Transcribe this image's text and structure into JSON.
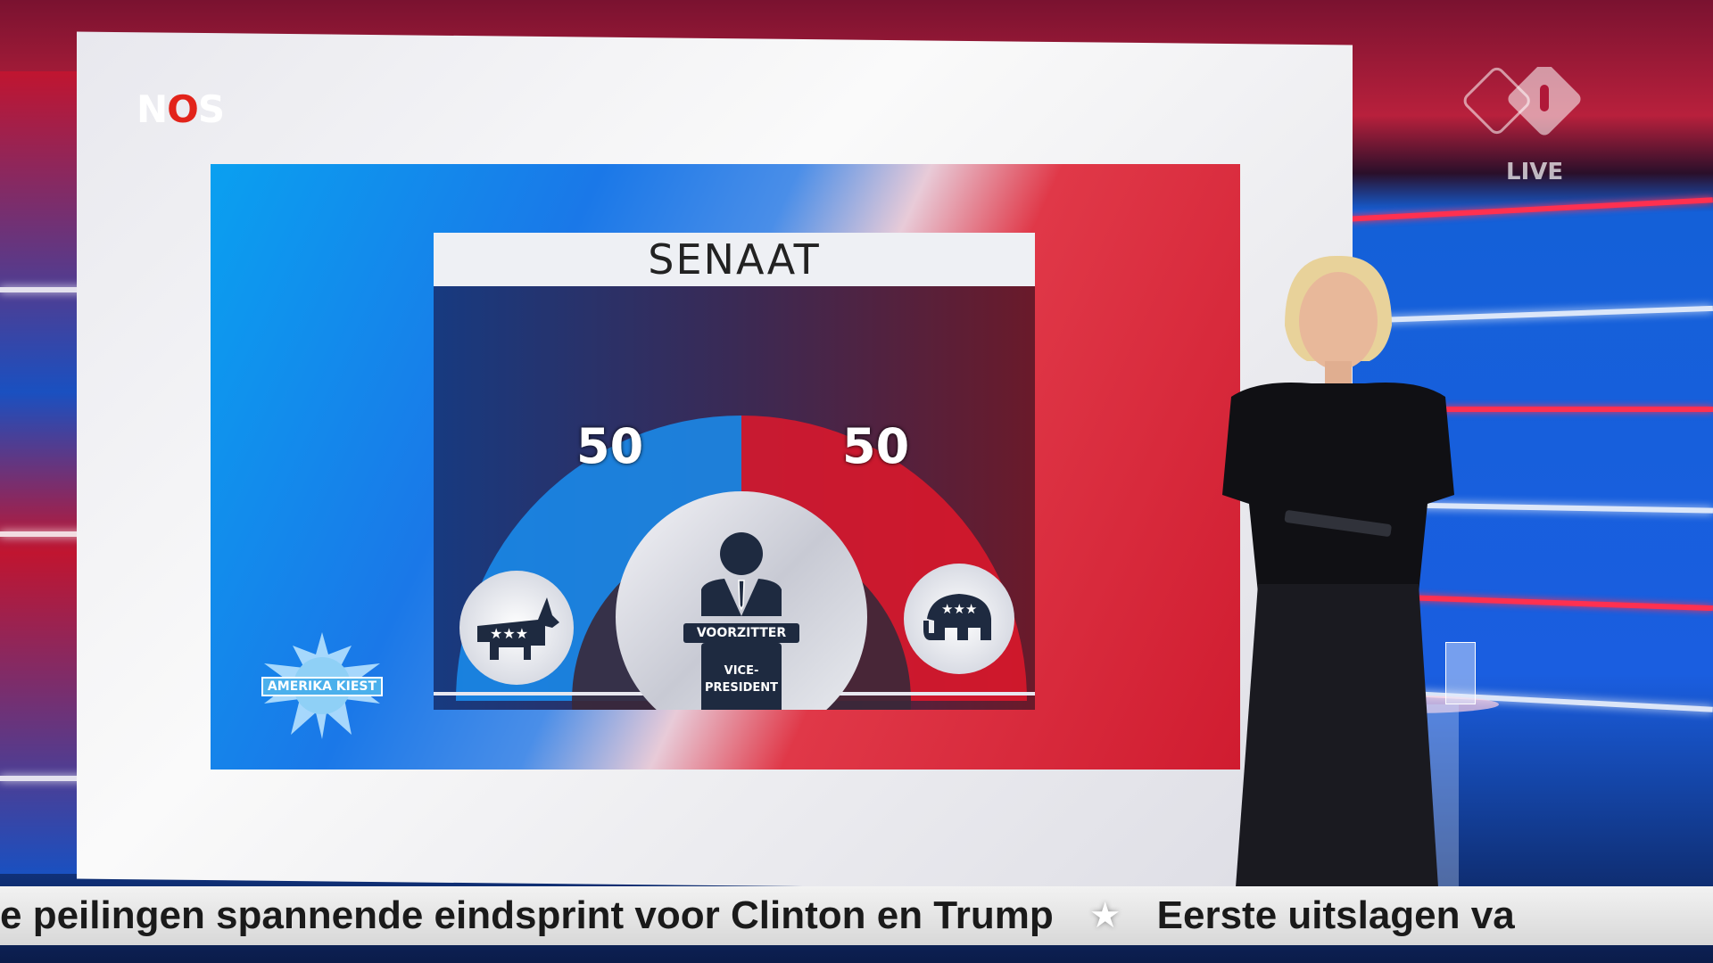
{
  "broadcaster": {
    "logo": "NOS",
    "channel_logo": "npo 1",
    "live_label": "LIVE"
  },
  "graphic": {
    "title": "SENAAT",
    "democrats": {
      "seats": 50,
      "color": "#1a8ef0",
      "icon": "donkey-icon"
    },
    "republicans": {
      "seats": 50,
      "color": "#e0182c",
      "icon": "elephant-icon"
    },
    "center": {
      "label_top": "VOORZITTER",
      "label_bottom_1": "VICE-",
      "label_bottom_2": "PRESIDENT",
      "icon": "person-at-podium-icon"
    }
  },
  "show_logo": "AMERIKA KIEST",
  "ticker": {
    "item_1": "e peilingen spannende eindsprint voor Clinton en Trump",
    "item_2": "Eerste uitslagen va"
  }
}
